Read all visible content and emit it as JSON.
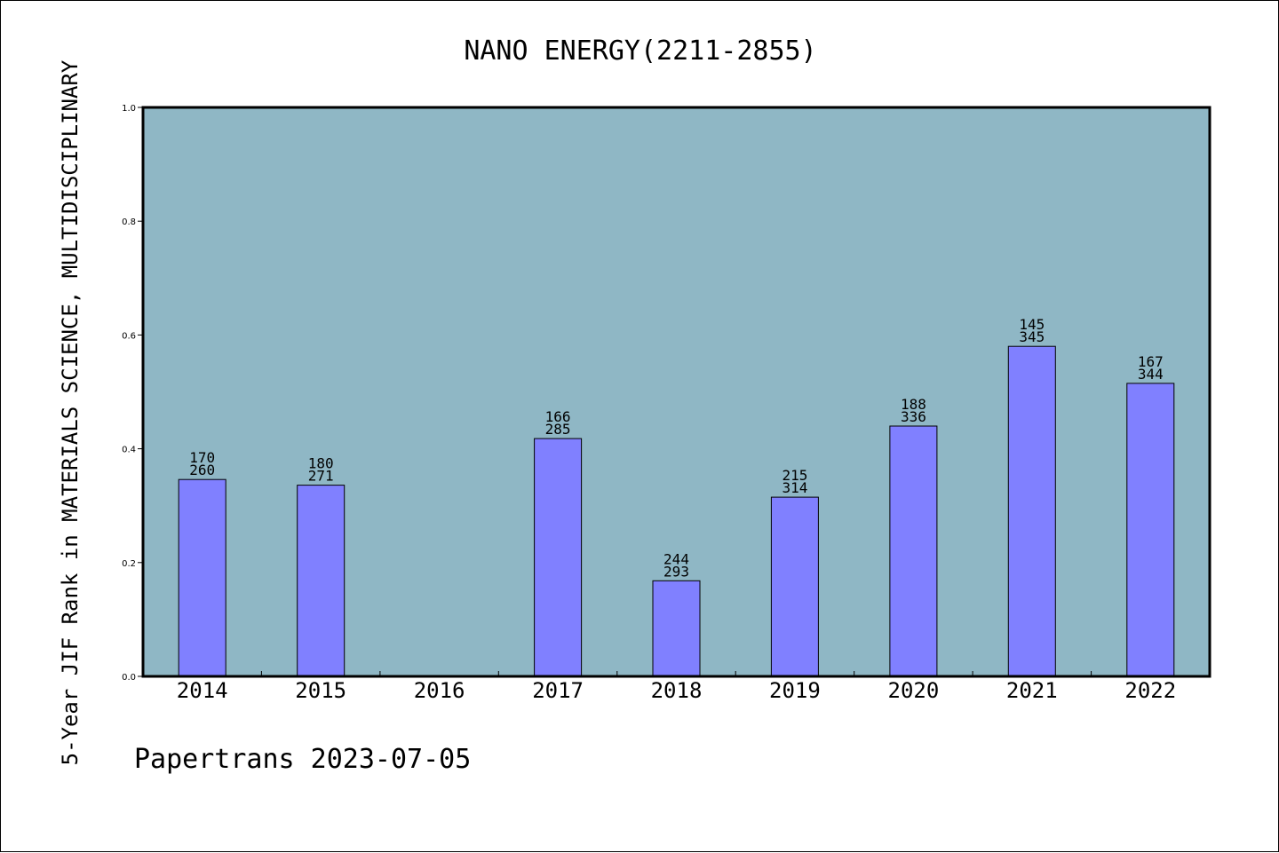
{
  "chart_data": {
    "type": "bar",
    "title": "NANO ENERGY(2211-2855)",
    "ylabel": "5-Year JIF Rank in MATERIALS SCIENCE, MULTIDISCIPLINARY",
    "xlabel": "",
    "ylim": [
      0,
      1.0
    ],
    "yticks": [
      "0.0",
      "0.2",
      "0.4",
      "0.6",
      "0.8",
      "1.0"
    ],
    "categories": [
      "2014",
      "2015",
      "2016",
      "2017",
      "2018",
      "2019",
      "2020",
      "2021",
      "2022"
    ],
    "values": [
      0.346,
      0.336,
      null,
      0.418,
      0.168,
      0.315,
      0.44,
      0.58,
      0.515
    ],
    "rank_labels": [
      "170",
      "180",
      "",
      "166",
      "244",
      "215",
      "188",
      "145",
      "167"
    ],
    "total_labels": [
      "260",
      "271",
      "",
      "285",
      "293",
      "314",
      "336",
      "345",
      "344"
    ],
    "plot_background": "#8fb7c5",
    "bar_color": "#8080ff",
    "grid": false
  },
  "footer": "Papertrans 2023-07-05"
}
